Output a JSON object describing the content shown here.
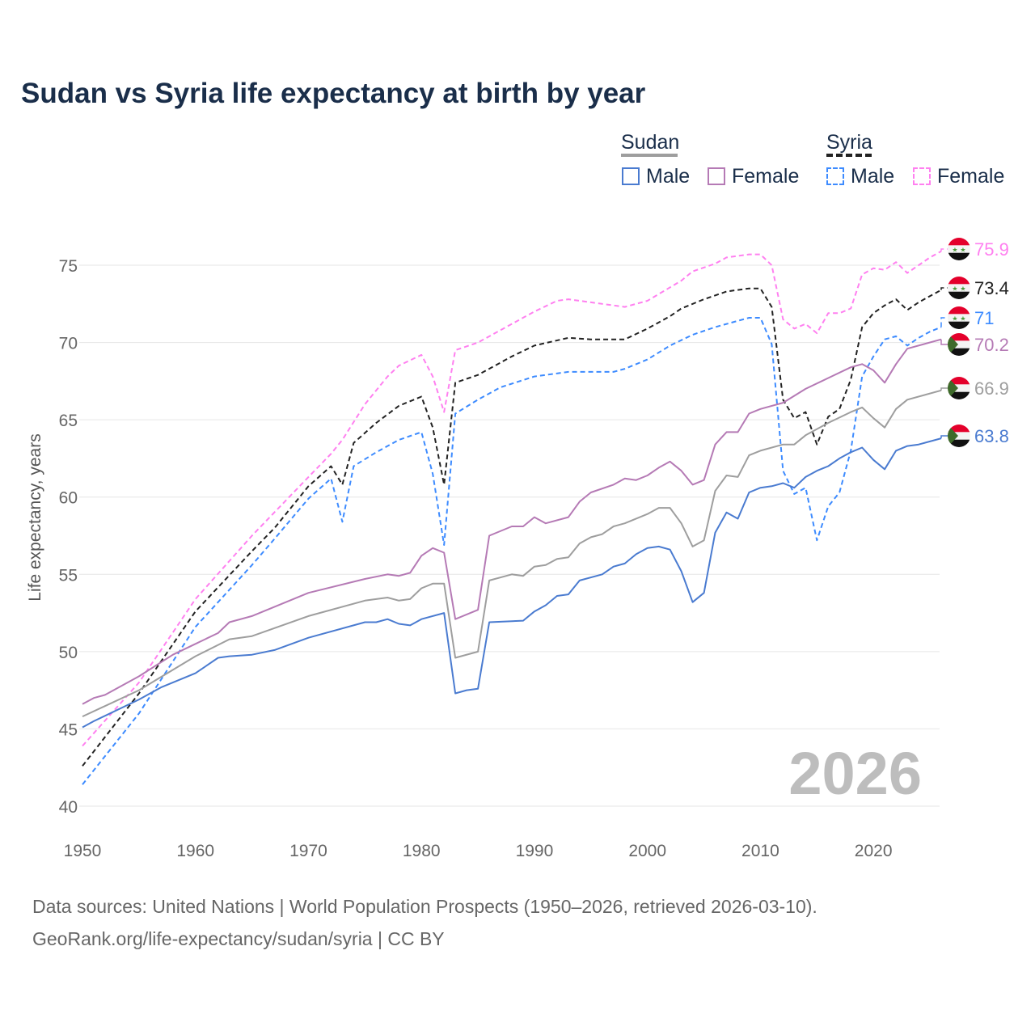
{
  "chart_data": {
    "type": "line",
    "title": "Sudan vs Syria life expectancy at birth by year",
    "xlabel": "",
    "ylabel": "Life expectancy, years",
    "xlim": [
      1950,
      2026
    ],
    "ylim": [
      40,
      77
    ],
    "x_ticks": [
      "1950",
      "1960",
      "1970",
      "1980",
      "1990",
      "2000",
      "2010",
      "2020"
    ],
    "y_ticks": [
      "40",
      "45",
      "50",
      "55",
      "60",
      "65",
      "70",
      "75"
    ],
    "grid": true,
    "watermark_year": "2026",
    "legend": {
      "groups": [
        {
          "name": "Sudan",
          "items": [
            "Male",
            "Female"
          ]
        },
        {
          "name": "Syria",
          "items": [
            "Male",
            "Female"
          ]
        }
      ],
      "placement": "top-right"
    },
    "series": [
      {
        "name": "Syria Female",
        "country": "Syria",
        "sex": "Female",
        "color": "#ff80f0",
        "dashed": true,
        "end_label": "75.9",
        "points": [
          [
            1950,
            43.9
          ],
          [
            1955,
            48
          ],
          [
            1960,
            53.4
          ],
          [
            1965,
            57.5
          ],
          [
            1970,
            61.3
          ],
          [
            1972,
            62.8
          ],
          [
            1973,
            63.7
          ],
          [
            1975,
            66
          ],
          [
            1977,
            67.8
          ],
          [
            1978,
            68.5
          ],
          [
            1980,
            69.2
          ],
          [
            1981,
            67.8
          ],
          [
            1982,
            65.5
          ],
          [
            1983,
            69.5
          ],
          [
            1985,
            70
          ],
          [
            1988,
            71.2
          ],
          [
            1990,
            72
          ],
          [
            1992,
            72.7
          ],
          [
            1993,
            72.8
          ],
          [
            1995,
            72.6
          ],
          [
            1998,
            72.3
          ],
          [
            2000,
            72.7
          ],
          [
            2003,
            74
          ],
          [
            2004,
            74.6
          ],
          [
            2006,
            75.1
          ],
          [
            2007,
            75.5
          ],
          [
            2009,
            75.7
          ],
          [
            2010,
            75.7
          ],
          [
            2011,
            75
          ],
          [
            2012,
            71.5
          ],
          [
            2013,
            70.9
          ],
          [
            2014,
            71.2
          ],
          [
            2015,
            70.6
          ],
          [
            2016,
            71.9
          ],
          [
            2017,
            71.9
          ],
          [
            2018,
            72.2
          ],
          [
            2019,
            74.4
          ],
          [
            2020,
            74.8
          ],
          [
            2021,
            74.7
          ],
          [
            2022,
            75.2
          ],
          [
            2023,
            74.5
          ],
          [
            2024,
            75
          ],
          [
            2025,
            75.5
          ],
          [
            2026,
            75.9
          ]
        ]
      },
      {
        "name": "Syria Total",
        "country": "Syria",
        "sex": "Total",
        "color": "#222222",
        "dashed": true,
        "end_label": "73.4",
        "points": [
          [
            1950,
            42.6
          ],
          [
            1955,
            47.3
          ],
          [
            1960,
            52.6
          ],
          [
            1965,
            56.5
          ],
          [
            1967,
            58
          ],
          [
            1970,
            60.7
          ],
          [
            1972,
            62
          ],
          [
            1973,
            60.8
          ],
          [
            1974,
            63.5
          ],
          [
            1976,
            64.8
          ],
          [
            1978,
            65.9
          ],
          [
            1980,
            66.5
          ],
          [
            1981,
            64.5
          ],
          [
            1982,
            60.8
          ],
          [
            1983,
            67.4
          ],
          [
            1985,
            67.9
          ],
          [
            1988,
            69.1
          ],
          [
            1990,
            69.8
          ],
          [
            1993,
            70.3
          ],
          [
            1995,
            70.2
          ],
          [
            1998,
            70.2
          ],
          [
            2000,
            70.9
          ],
          [
            2002,
            71.7
          ],
          [
            2003,
            72.2
          ],
          [
            2005,
            72.8
          ],
          [
            2007,
            73.3
          ],
          [
            2009,
            73.5
          ],
          [
            2010,
            73.5
          ],
          [
            2011,
            72.3
          ],
          [
            2012,
            66.3
          ],
          [
            2013,
            65.1
          ],
          [
            2014,
            65.5
          ],
          [
            2015,
            63.4
          ],
          [
            2016,
            65.2
          ],
          [
            2017,
            65.7
          ],
          [
            2018,
            67.6
          ],
          [
            2019,
            71
          ],
          [
            2020,
            71.9
          ],
          [
            2021,
            72.4
          ],
          [
            2022,
            72.8
          ],
          [
            2023,
            72.1
          ],
          [
            2024,
            72.6
          ],
          [
            2025,
            73
          ],
          [
            2026,
            73.4
          ]
        ]
      },
      {
        "name": "Syria Male",
        "country": "Syria",
        "sex": "Male",
        "color": "#3d8bff",
        "dashed": true,
        "end_label": "71",
        "points": [
          [
            1950,
            41.4
          ],
          [
            1955,
            46
          ],
          [
            1960,
            51.6
          ],
          [
            1965,
            55.6
          ],
          [
            1967,
            57.3
          ],
          [
            1970,
            59.9
          ],
          [
            1972,
            61.2
          ],
          [
            1973,
            58.4
          ],
          [
            1974,
            62
          ],
          [
            1976,
            62.9
          ],
          [
            1978,
            63.7
          ],
          [
            1980,
            64.2
          ],
          [
            1981,
            61.5
          ],
          [
            1982,
            56.9
          ],
          [
            1983,
            65.4
          ],
          [
            1985,
            66.3
          ],
          [
            1987,
            67.1
          ],
          [
            1990,
            67.8
          ],
          [
            1993,
            68.1
          ],
          [
            1997,
            68.1
          ],
          [
            1998,
            68.3
          ],
          [
            2000,
            68.9
          ],
          [
            2002,
            69.8
          ],
          [
            2004,
            70.5
          ],
          [
            2006,
            71
          ],
          [
            2008,
            71.4
          ],
          [
            2009,
            71.6
          ],
          [
            2010,
            71.6
          ],
          [
            2011,
            69.9
          ],
          [
            2012,
            61.7
          ],
          [
            2013,
            60.2
          ],
          [
            2014,
            60.6
          ],
          [
            2015,
            57.2
          ],
          [
            2016,
            59.4
          ],
          [
            2017,
            60.3
          ],
          [
            2018,
            63
          ],
          [
            2019,
            67.8
          ],
          [
            2020,
            69.1
          ],
          [
            2021,
            70.2
          ],
          [
            2022,
            70.4
          ],
          [
            2023,
            69.8
          ],
          [
            2024,
            70.3
          ],
          [
            2025,
            70.7
          ],
          [
            2026,
            71
          ]
        ]
      },
      {
        "name": "Sudan Female",
        "country": "Sudan",
        "sex": "Female",
        "color": "#b57ab5",
        "dashed": false,
        "end_label": "70.2",
        "points": [
          [
            1950,
            46.6
          ],
          [
            1951,
            47
          ],
          [
            1952,
            47.2
          ],
          [
            1955,
            48.4
          ],
          [
            1958,
            49.8
          ],
          [
            1960,
            50.5
          ],
          [
            1962,
            51.2
          ],
          [
            1963,
            51.9
          ],
          [
            1965,
            52.3
          ],
          [
            1970,
            53.8
          ],
          [
            1975,
            54.7
          ],
          [
            1977,
            55
          ],
          [
            1978,
            54.9
          ],
          [
            1979,
            55.1
          ],
          [
            1980,
            56.2
          ],
          [
            1981,
            56.7
          ],
          [
            1982,
            56.4
          ],
          [
            1983,
            52.1
          ],
          [
            1985,
            52.7
          ],
          [
            1986,
            57.5
          ],
          [
            1988,
            58.1
          ],
          [
            1989,
            58.1
          ],
          [
            1990,
            58.7
          ],
          [
            1991,
            58.3
          ],
          [
            1993,
            58.7
          ],
          [
            1994,
            59.7
          ],
          [
            1995,
            60.3
          ],
          [
            1997,
            60.8
          ],
          [
            1998,
            61.2
          ],
          [
            1999,
            61.1
          ],
          [
            2000,
            61.4
          ],
          [
            2001,
            61.9
          ],
          [
            2002,
            62.3
          ],
          [
            2003,
            61.7
          ],
          [
            2004,
            60.8
          ],
          [
            2005,
            61.1
          ],
          [
            2006,
            63.4
          ],
          [
            2007,
            64.2
          ],
          [
            2008,
            64.2
          ],
          [
            2009,
            65.4
          ],
          [
            2010,
            65.7
          ],
          [
            2012,
            66.1
          ],
          [
            2014,
            67
          ],
          [
            2016,
            67.7
          ],
          [
            2018,
            68.4
          ],
          [
            2019,
            68.6
          ],
          [
            2020,
            68.2
          ],
          [
            2021,
            67.4
          ],
          [
            2022,
            68.6
          ],
          [
            2023,
            69.6
          ],
          [
            2026,
            70.2
          ]
        ]
      },
      {
        "name": "Sudan Total",
        "country": "Sudan",
        "sex": "Total",
        "color": "#9e9e9e",
        "dashed": false,
        "end_label": "66.9",
        "points": [
          [
            1950,
            45.8
          ],
          [
            1955,
            47.5
          ],
          [
            1960,
            49.7
          ],
          [
            1963,
            50.8
          ],
          [
            1965,
            51
          ],
          [
            1970,
            52.3
          ],
          [
            1975,
            53.3
          ],
          [
            1977,
            53.5
          ],
          [
            1978,
            53.3
          ],
          [
            1979,
            53.4
          ],
          [
            1980,
            54.1
          ],
          [
            1981,
            54.4
          ],
          [
            1982,
            54.4
          ],
          [
            1983,
            49.6
          ],
          [
            1985,
            50
          ],
          [
            1986,
            54.6
          ],
          [
            1988,
            55
          ],
          [
            1989,
            54.9
          ],
          [
            1990,
            55.5
          ],
          [
            1991,
            55.6
          ],
          [
            1992,
            56
          ],
          [
            1993,
            56.1
          ],
          [
            1994,
            57
          ],
          [
            1995,
            57.4
          ],
          [
            1996,
            57.6
          ],
          [
            1997,
            58.1
          ],
          [
            1998,
            58.3
          ],
          [
            2000,
            58.9
          ],
          [
            2001,
            59.3
          ],
          [
            2002,
            59.3
          ],
          [
            2003,
            58.3
          ],
          [
            2004,
            56.8
          ],
          [
            2005,
            57.2
          ],
          [
            2006,
            60.4
          ],
          [
            2007,
            61.4
          ],
          [
            2008,
            61.3
          ],
          [
            2009,
            62.7
          ],
          [
            2010,
            63
          ],
          [
            2012,
            63.4
          ],
          [
            2013,
            63.4
          ],
          [
            2014,
            64
          ],
          [
            2016,
            64.8
          ],
          [
            2018,
            65.5
          ],
          [
            2019,
            65.8
          ],
          [
            2020,
            65.1
          ],
          [
            2021,
            64.5
          ],
          [
            2022,
            65.7
          ],
          [
            2023,
            66.3
          ],
          [
            2026,
            66.9
          ]
        ]
      },
      {
        "name": "Sudan Male",
        "country": "Sudan",
        "sex": "Male",
        "color": "#4a7bd0",
        "dashed": false,
        "end_label": "63.8",
        "points": [
          [
            1950,
            45.1
          ],
          [
            1951,
            45.5
          ],
          [
            1955,
            46.9
          ],
          [
            1957,
            47.7
          ],
          [
            1960,
            48.6
          ],
          [
            1962,
            49.6
          ],
          [
            1963,
            49.7
          ],
          [
            1965,
            49.8
          ],
          [
            1967,
            50.1
          ],
          [
            1970,
            50.9
          ],
          [
            1975,
            51.9
          ],
          [
            1976,
            51.9
          ],
          [
            1977,
            52.1
          ],
          [
            1978,
            51.8
          ],
          [
            1979,
            51.7
          ],
          [
            1980,
            52.1
          ],
          [
            1982,
            52.5
          ],
          [
            1983,
            47.3
          ],
          [
            1984,
            47.5
          ],
          [
            1985,
            47.6
          ],
          [
            1986,
            51.9
          ],
          [
            1989,
            52
          ],
          [
            1990,
            52.6
          ],
          [
            1991,
            53
          ],
          [
            1992,
            53.6
          ],
          [
            1993,
            53.7
          ],
          [
            1994,
            54.6
          ],
          [
            1996,
            55
          ],
          [
            1997,
            55.5
          ],
          [
            1998,
            55.7
          ],
          [
            1999,
            56.3
          ],
          [
            2000,
            56.7
          ],
          [
            2001,
            56.8
          ],
          [
            2002,
            56.6
          ],
          [
            2003,
            55.2
          ],
          [
            2004,
            53.2
          ],
          [
            2005,
            53.8
          ],
          [
            2006,
            57.7
          ],
          [
            2007,
            59
          ],
          [
            2008,
            58.6
          ],
          [
            2009,
            60.3
          ],
          [
            2010,
            60.6
          ],
          [
            2011,
            60.7
          ],
          [
            2012,
            60.9
          ],
          [
            2013,
            60.6
          ],
          [
            2014,
            61.3
          ],
          [
            2015,
            61.7
          ],
          [
            2016,
            62
          ],
          [
            2017,
            62.5
          ],
          [
            2018,
            62.9
          ],
          [
            2019,
            63.2
          ],
          [
            2020,
            62.4
          ],
          [
            2021,
            61.8
          ],
          [
            2022,
            63
          ],
          [
            2023,
            63.3
          ],
          [
            2024,
            63.4
          ],
          [
            2026,
            63.8
          ]
        ]
      }
    ]
  },
  "footer": {
    "line1": "Data sources: United Nations | World Population Prospects (1950–2026, retrieved 2026-03-10).",
    "line2": "GeoRank.org/life-expectancy/sudan/syria | CC BY"
  }
}
